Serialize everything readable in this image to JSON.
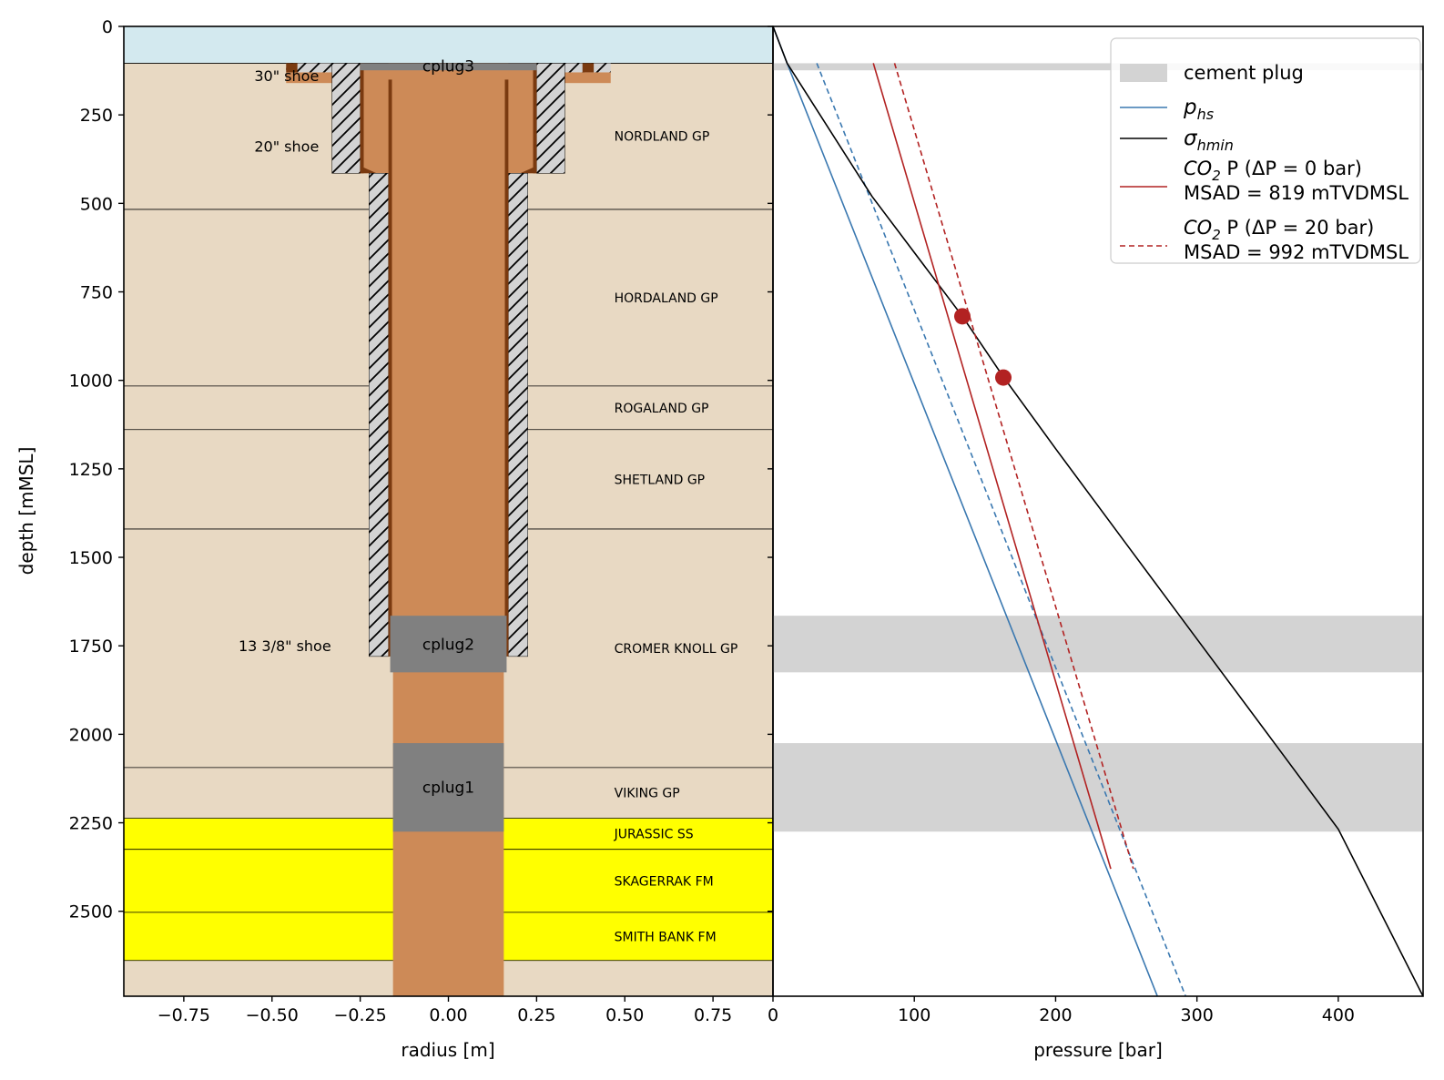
{
  "chart_data": [
    {
      "type": "well schematic",
      "xlabel": "radius [m]",
      "ylabel": "depth [mMSL]",
      "xlim": [
        -0.92,
        0.92
      ],
      "ylim": [
        2740,
        0
      ],
      "xticks": [
        -0.75,
        -0.5,
        -0.25,
        0.0,
        0.25,
        0.5,
        0.75
      ],
      "xticklabels": [
        "−0.75",
        "−0.50",
        "−0.25",
        "0.00",
        "0.25",
        "0.50",
        "0.75"
      ],
      "yticks": [
        0,
        250,
        500,
        750,
        1000,
        1250,
        1500,
        1750,
        2000,
        2250,
        2500
      ],
      "yticklabels": [
        "0",
        "250",
        "500",
        "750",
        "1000",
        "1250",
        "1500",
        "1750",
        "2000",
        "2250",
        "2500"
      ],
      "sea_bottom": 104,
      "colors": {
        "sea": "#d3e9ef",
        "sediment": "#e8d9c3",
        "reservoir": "#ffff00",
        "casing_fill": "#cd8a57",
        "casing_wall": "#7a3a10",
        "cement": "#d3d3d3",
        "plug": "#808080"
      },
      "formations": [
        {
          "name": "NORDLAND GP",
          "top": 104,
          "bottom": 517,
          "reservoir": false
        },
        {
          "name": "HORDALAND GP",
          "top": 517,
          "bottom": 1016,
          "reservoir": false
        },
        {
          "name": "ROGALAND GP",
          "top": 1016,
          "bottom": 1139,
          "reservoir": false
        },
        {
          "name": "SHETLAND GP",
          "top": 1139,
          "bottom": 1420,
          "reservoir": false
        },
        {
          "name": "CROMER KNOLL GP",
          "top": 1420,
          "bottom": 2094,
          "reservoir": false
        },
        {
          "name": "VIKING GP",
          "top": 2094,
          "bottom": 2237,
          "reservoir": false
        },
        {
          "name": "JURASSIC SS",
          "top": 2237,
          "bottom": 2325,
          "reservoir": true
        },
        {
          "name": "SKAGERRAK FM",
          "top": 2325,
          "bottom": 2503,
          "reservoir": true
        },
        {
          "name": "SMITH BANK FM",
          "top": 2503,
          "bottom": 2639,
          "reservoir": true
        }
      ],
      "casings": [
        {
          "label": "30\" shoe",
          "top": 104,
          "shoe": 160,
          "radius": 0.25,
          "wall": 0.01,
          "cement_outer": 0.33,
          "shoe_outer": 0.46,
          "label_x": -0.55
        },
        {
          "label": "20\" shoe",
          "top": 104,
          "shoe": 415,
          "radius": 0.25,
          "wall": 0.01,
          "cement_outer": 0.33,
          "shoe_outer": 0.33,
          "label_x": -0.55
        },
        {
          "label": "13 3/8\" shoe",
          "top": 104,
          "shoe": 1780,
          "radius": 0.17,
          "wall": 0.01,
          "cement_outer": 0.225,
          "shoe_outer": 0.225,
          "label_x": -0.595
        }
      ],
      "open_hole": {
        "top": 1780,
        "bottom": 2740,
        "radius": 0.157
      },
      "cement_plugs": [
        {
          "name": "cplug3",
          "top": 104,
          "bottom": 124,
          "radius": 0.25
        },
        {
          "name": "cplug2",
          "top": 1665,
          "bottom": 1825,
          "radius": 0.165
        },
        {
          "name": "cplug1",
          "top": 2025,
          "bottom": 2275,
          "radius": 0.157
        }
      ]
    },
    {
      "type": "line",
      "xlabel": "pressure [bar]",
      "xlim": [
        0,
        460
      ],
      "ylim": [
        2740,
        0
      ],
      "xticks": [
        0,
        100,
        200,
        300,
        400
      ],
      "legend_position": "top-right",
      "cement_plug_bands": [
        [
          104,
          124
        ],
        [
          1665,
          1825
        ],
        [
          2025,
          2275
        ]
      ],
      "series": [
        {
          "name": "p_hs",
          "color": "#3a78b0",
          "style": "solid",
          "points": [
            [
              0,
              0
            ],
            [
              10,
              104
            ],
            [
              272,
              2740
            ]
          ]
        },
        {
          "name": "p_hs (dashed)",
          "color": "#3a78b0",
          "style": "dashed",
          "points": [
            [
              31,
              104
            ],
            [
              292,
              2740
            ]
          ]
        },
        {
          "name": "σ_hmin",
          "color": "#000000",
          "style": "solid",
          "points": [
            [
              0,
              0
            ],
            [
              10,
              104
            ],
            [
              70,
              480
            ],
            [
              134,
              819
            ],
            [
              163,
              990
            ],
            [
              200,
              1193
            ],
            [
              250,
              1462
            ],
            [
              300,
              1731
            ],
            [
              350,
              1999
            ],
            [
              400,
              2268
            ],
            [
              460,
              2740
            ]
          ]
        },
        {
          "name": "CO2 P (ΔP = 0 bar)",
          "msad": "MSAD = 819 mTVDMSL",
          "color": "#b22222",
          "style": "solid",
          "points": [
            [
              71,
              104
            ],
            [
              239,
              2380
            ]
          ]
        },
        {
          "name": "CO2 P (ΔP = 20 bar)",
          "msad": "MSAD = 992 mTVDMSL",
          "color": "#b22222",
          "style": "dashed",
          "points": [
            [
              86,
              104
            ],
            [
              255,
              2380
            ]
          ]
        }
      ],
      "markers": [
        {
          "pressure": 134,
          "depth": 819,
          "color": "#b22222"
        },
        {
          "pressure": 163,
          "depth": 992,
          "color": "#b22222"
        }
      ],
      "legend": [
        {
          "kind": "patch",
          "color": "#d3d3d3",
          "text": "cement plug"
        },
        {
          "kind": "line",
          "color": "#3a78b0",
          "dash": false,
          "math": {
            "base": "p",
            "sub": "hs"
          }
        },
        {
          "kind": "line",
          "color": "#000000",
          "dash": false,
          "math": {
            "base": "σ",
            "sub": "hmin"
          }
        },
        {
          "kind": "line",
          "color": "#b22222",
          "dash": false,
          "line1_pre": "CO",
          "line1_sub": "2",
          "line1_post": " P (ΔP = 0 bar)",
          "line2": "MSAD = 819 mTVDMSL"
        },
        {
          "kind": "line",
          "color": "#b22222",
          "dash": true,
          "line1_pre": "CO",
          "line1_sub": "2",
          "line1_post": " P (ΔP = 20 bar)",
          "line2": "MSAD = 992 mTVDMSL"
        }
      ]
    }
  ]
}
